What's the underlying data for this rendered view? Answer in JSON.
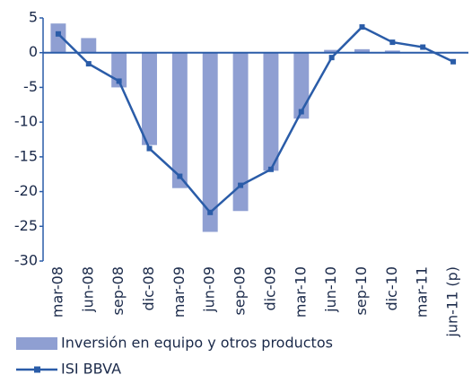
{
  "chart_data": {
    "type": "bar",
    "categories": [
      "mar-08",
      "jun-08",
      "sep-08",
      "dic-08",
      "mar-09",
      "jun-09",
      "sep-09",
      "dic-09",
      "mar-10",
      "jun-10",
      "sep-10",
      "dic-10",
      "mar-11",
      "jun-11 (p)"
    ],
    "series": [
      {
        "name": "Inversión en equipo y otros productos",
        "type": "bar",
        "color": "#8f9fd2",
        "values": [
          4.2,
          2.1,
          -5,
          -13.3,
          -19.5,
          -25.8,
          -22.8,
          -17,
          -9.5,
          0.4,
          0.5,
          0.3,
          0,
          0
        ]
      },
      {
        "name": "ISI BBVA",
        "type": "line",
        "color": "#2a5ca8",
        "values": [
          2.7,
          -1.6,
          -4.1,
          -13.8,
          -17.8,
          -23,
          -19.1,
          -16.8,
          -8.5,
          -0.7,
          3.7,
          1.5,
          0.8,
          -1.3
        ]
      }
    ],
    "ylim": [
      -30,
      5
    ],
    "yticks": [
      5,
      0,
      -5,
      -10,
      -15,
      -20,
      -25,
      -30
    ]
  }
}
